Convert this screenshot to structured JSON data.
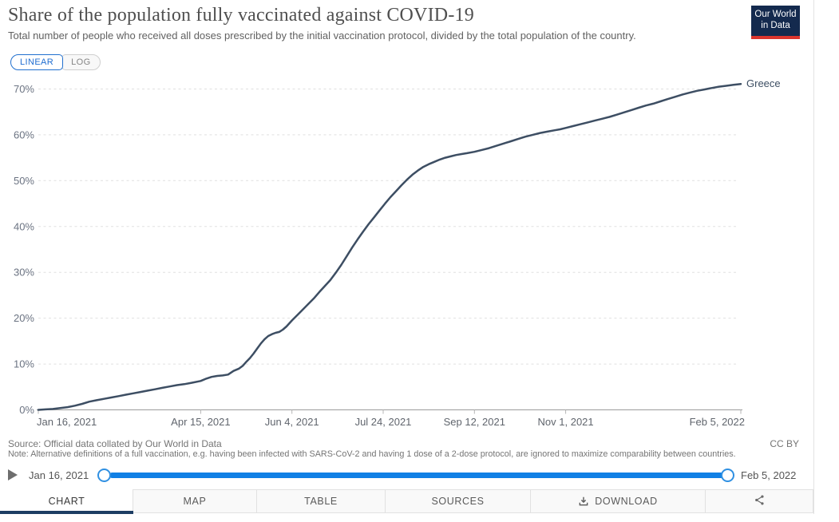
{
  "header": {
    "title": "Share of the population fully vaccinated against COVID-19",
    "subtitle": "Total number of people who received all doses prescribed by the initial vaccination protocol, divided by the total population of the country.",
    "logo_line1": "Our World",
    "logo_line2": "in Data"
  },
  "controls": {
    "linear_label": "LINEAR",
    "log_label": "LOG"
  },
  "chart_data": {
    "type": "line",
    "title": "Share of the population fully vaccinated against COVID-19",
    "xlabel": "",
    "ylabel": "",
    "ylim": [
      0,
      70
    ],
    "grid": "horizontal-dashed",
    "legend_position": "end-of-line",
    "x_range_days": 385,
    "x_ticks": [
      {
        "label": "Jan 16, 2021",
        "day": 0
      },
      {
        "label": "Apr 15, 2021",
        "day": 89
      },
      {
        "label": "Jun 4, 2021",
        "day": 139
      },
      {
        "label": "Jul 24, 2021",
        "day": 189
      },
      {
        "label": "Sep 12, 2021",
        "day": 239
      },
      {
        "label": "Nov 1, 2021",
        "day": 289
      },
      {
        "label": "Feb 5, 2022",
        "day": 385
      }
    ],
    "y_ticks": [
      "0%",
      "10%",
      "20%",
      "30%",
      "40%",
      "50%",
      "60%",
      "70%"
    ],
    "series": [
      {
        "name": "Greece",
        "color": "#3d4e63",
        "points": [
          [
            0,
            0
          ],
          [
            4,
            0.1
          ],
          [
            8,
            0.2
          ],
          [
            12,
            0.4
          ],
          [
            16,
            0.6
          ],
          [
            20,
            0.9
          ],
          [
            24,
            1.3
          ],
          [
            28,
            1.8
          ],
          [
            32,
            2.1
          ],
          [
            36,
            2.4
          ],
          [
            40,
            2.7
          ],
          [
            44,
            3.0
          ],
          [
            48,
            3.3
          ],
          [
            52,
            3.6
          ],
          [
            56,
            3.9
          ],
          [
            60,
            4.2
          ],
          [
            64,
            4.5
          ],
          [
            68,
            4.8
          ],
          [
            72,
            5.1
          ],
          [
            76,
            5.4
          ],
          [
            80,
            5.6
          ],
          [
            84,
            5.9
          ],
          [
            89,
            6.3
          ],
          [
            92,
            6.8
          ],
          [
            95,
            7.2
          ],
          [
            98,
            7.4
          ],
          [
            101,
            7.5
          ],
          [
            104,
            7.7
          ],
          [
            107,
            8.5
          ],
          [
            110,
            9.0
          ],
          [
            112,
            9.6
          ],
          [
            114,
            10.5
          ],
          [
            116,
            11.3
          ],
          [
            118,
            12.3
          ],
          [
            120,
            13.4
          ],
          [
            122,
            14.5
          ],
          [
            124,
            15.4
          ],
          [
            126,
            16.1
          ],
          [
            128,
            16.5
          ],
          [
            130,
            16.8
          ],
          [
            132,
            17.0
          ],
          [
            134,
            17.5
          ],
          [
            136,
            18.2
          ],
          [
            139,
            19.5
          ],
          [
            142,
            20.7
          ],
          [
            145,
            21.9
          ],
          [
            148,
            23.1
          ],
          [
            151,
            24.3
          ],
          [
            154,
            25.7
          ],
          [
            157,
            27.0
          ],
          [
            160,
            28.3
          ],
          [
            163,
            29.9
          ],
          [
            166,
            31.6
          ],
          [
            169,
            33.5
          ],
          [
            172,
            35.4
          ],
          [
            175,
            37.2
          ],
          [
            178,
            38.9
          ],
          [
            181,
            40.5
          ],
          [
            184,
            42.0
          ],
          [
            187,
            43.5
          ],
          [
            190,
            45.0
          ],
          [
            193,
            46.4
          ],
          [
            196,
            47.7
          ],
          [
            199,
            49.0
          ],
          [
            202,
            50.2
          ],
          [
            205,
            51.3
          ],
          [
            208,
            52.2
          ],
          [
            211,
            53.0
          ],
          [
            214,
            53.6
          ],
          [
            217,
            54.1
          ],
          [
            220,
            54.6
          ],
          [
            223,
            55.0
          ],
          [
            226,
            55.3
          ],
          [
            229,
            55.6
          ],
          [
            232,
            55.8
          ],
          [
            235,
            56.0
          ],
          [
            239,
            56.3
          ],
          [
            243,
            56.7
          ],
          [
            247,
            57.1
          ],
          [
            251,
            57.6
          ],
          [
            255,
            58.1
          ],
          [
            259,
            58.6
          ],
          [
            263,
            59.1
          ],
          [
            267,
            59.6
          ],
          [
            271,
            60.0
          ],
          [
            275,
            60.4
          ],
          [
            279,
            60.7
          ],
          [
            283,
            61.0
          ],
          [
            286,
            61.2
          ],
          [
            289,
            61.5
          ],
          [
            293,
            61.9
          ],
          [
            297,
            62.3
          ],
          [
            301,
            62.7
          ],
          [
            305,
            63.1
          ],
          [
            309,
            63.5
          ],
          [
            313,
            63.9
          ],
          [
            317,
            64.4
          ],
          [
            321,
            64.9
          ],
          [
            325,
            65.4
          ],
          [
            329,
            65.9
          ],
          [
            333,
            66.4
          ],
          [
            337,
            66.8
          ],
          [
            341,
            67.3
          ],
          [
            345,
            67.8
          ],
          [
            349,
            68.3
          ],
          [
            353,
            68.8
          ],
          [
            357,
            69.2
          ],
          [
            361,
            69.6
          ],
          [
            365,
            69.9
          ],
          [
            369,
            70.2
          ],
          [
            373,
            70.5
          ],
          [
            377,
            70.7
          ],
          [
            381,
            70.9
          ],
          [
            385,
            71.1
          ]
        ]
      }
    ]
  },
  "footer": {
    "source": "Source: Official data collated by Our World in Data",
    "note": "Note: Alternative definitions of a full vaccination, e.g. having been infected with SARS-CoV-2 and having 1 dose of a 2-dose protocol, are ignored to maximize comparability between countries.",
    "license": "CC BY"
  },
  "timeline": {
    "start_label": "Jan 16, 2021",
    "end_label": "Feb 5, 2022"
  },
  "tabs": [
    {
      "label": "CHART",
      "active": true
    },
    {
      "label": "MAP",
      "active": false
    },
    {
      "label": "TABLE",
      "active": false
    },
    {
      "label": "SOURCES",
      "active": false
    },
    {
      "label": "DOWNLOAD",
      "active": false
    },
    {
      "label": "",
      "active": false
    }
  ],
  "colors": {
    "line": "#3d4e63",
    "accent_blue": "#1180e5",
    "active_tab_bar": "#1d3d63",
    "logo_bg": "#142a4e",
    "logo_red": "#dc352d"
  }
}
